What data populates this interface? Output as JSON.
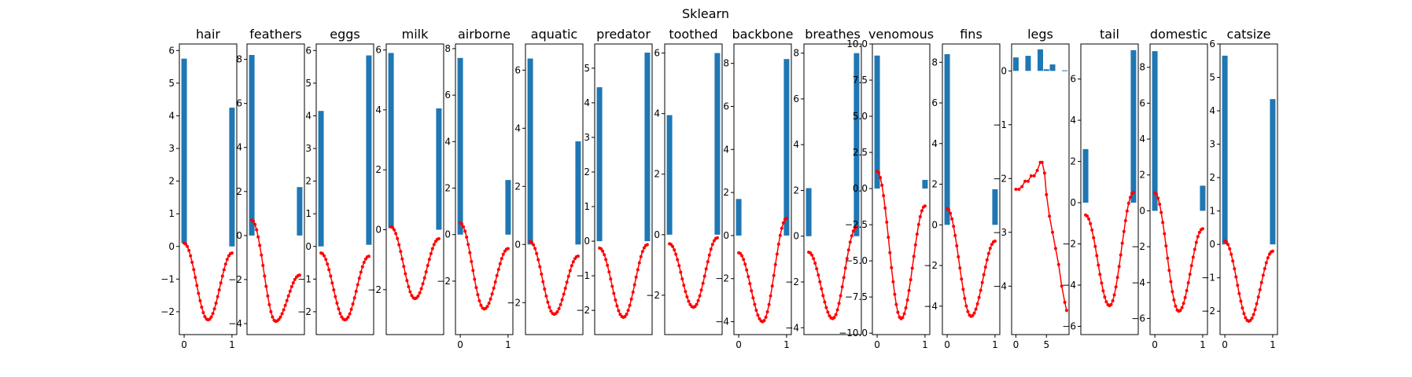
{
  "figure": {
    "suptitle": "Sklearn"
  },
  "colors": {
    "bar": "#1f77b4",
    "curve": "#ff0000",
    "axis": "#000000",
    "background": "#ffffff"
  },
  "chart_data": [
    {
      "type": "bar+line",
      "title": "hair",
      "xlim": [
        -0.1,
        1.1
      ],
      "ylim": [
        -2.7,
        6.2
      ],
      "yticks": [
        6,
        5,
        4,
        3,
        2,
        1,
        0,
        -1,
        -2
      ],
      "ytick_labels": [
        "6",
        "5",
        "4",
        "3",
        "2",
        "1",
        "0",
        "−1",
        "−2"
      ],
      "xticks": [
        0,
        1
      ],
      "xtick_labels": [
        "0",
        "1"
      ],
      "bars": [
        {
          "x": 0,
          "y0": 0.1,
          "y1": 5.75
        },
        {
          "x": 1,
          "y0": 0.0,
          "y1": 4.25
        }
      ],
      "curve": {
        "start": 0.1,
        "min": -2.25,
        "end": -0.2
      }
    },
    {
      "type": "bar+line",
      "title": "feathers",
      "xlim": [
        -0.1,
        1.1
      ],
      "ylim": [
        -4.5,
        8.7
      ],
      "yticks": [
        8,
        6,
        4,
        2,
        0,
        -2,
        -4
      ],
      "ytick_labels": [
        "8",
        "6",
        "4",
        "2",
        "0",
        "−2",
        "−4"
      ],
      "xticks": [],
      "xtick_labels": [],
      "bars": [
        {
          "x": 0,
          "y0": 0.0,
          "y1": 8.2
        },
        {
          "x": 1,
          "y0": 0.0,
          "y1": 2.2
        }
      ],
      "curve": {
        "start": 0.7,
        "min": -3.9,
        "end": -1.8
      }
    },
    {
      "type": "bar+line",
      "title": "eggs",
      "xlim": [
        -0.1,
        1.1
      ],
      "ylim": [
        -2.7,
        6.2
      ],
      "yticks": [
        6,
        5,
        4,
        3,
        2,
        1,
        0,
        -1,
        -2
      ],
      "ytick_labels": [
        "6",
        "5",
        "4",
        "3",
        "2",
        "1",
        "0",
        "−1",
        "−2"
      ],
      "xticks": [],
      "xtick_labels": [],
      "bars": [
        {
          "x": 0,
          "y0": 0.0,
          "y1": 4.15
        },
        {
          "x": 1,
          "y0": 0.05,
          "y1": 5.85
        }
      ],
      "curve": {
        "start": -0.2,
        "min": -2.25,
        "end": -0.3
      }
    },
    {
      "type": "bar+line",
      "title": "milk",
      "xlim": [
        -0.1,
        1.1
      ],
      "ylim": [
        -3.5,
        6.2
      ],
      "yticks": [
        6,
        4,
        2,
        0,
        -2
      ],
      "ytick_labels": [
        "6",
        "4",
        "2",
        "0",
        "−2"
      ],
      "xticks": [],
      "xtick_labels": [],
      "bars": [
        {
          "x": 0,
          "y0": 0.05,
          "y1": 5.9
        },
        {
          "x": 1,
          "y0": 0.0,
          "y1": 4.05
        }
      ],
      "curve": {
        "start": 0.1,
        "min": -2.3,
        "end": -0.3
      }
    },
    {
      "type": "bar+line",
      "title": "airborne",
      "xlim": [
        -0.1,
        1.1
      ],
      "ylim": [
        -4.3,
        8.2
      ],
      "yticks": [
        8,
        6,
        4,
        2,
        0,
        -2
      ],
      "ytick_labels": [
        "8",
        "6",
        "4",
        "2",
        "0",
        "−2"
      ],
      "xticks": [
        0,
        1
      ],
      "xtick_labels": [
        "0",
        "1"
      ],
      "bars": [
        {
          "x": 0,
          "y0": 0.0,
          "y1": 7.6
        },
        {
          "x": 1,
          "y0": 0.0,
          "y1": 2.35
        }
      ],
      "curve": {
        "start": 0.5,
        "min": -3.2,
        "end": -0.6
      }
    },
    {
      "type": "bar+line",
      "title": "aquatic",
      "xlim": [
        -0.1,
        1.1
      ],
      "ylim": [
        -3.1,
        6.9
      ],
      "yticks": [
        6,
        4,
        2,
        0,
        -2
      ],
      "ytick_labels": [
        "6",
        "4",
        "2",
        "0",
        "−2"
      ],
      "xticks": [],
      "xtick_labels": [],
      "bars": [
        {
          "x": 0,
          "y0": 0.0,
          "y1": 6.4
        },
        {
          "x": 1,
          "y0": 0.0,
          "y1": 3.55
        }
      ],
      "curve": {
        "start": 0.1,
        "min": -2.4,
        "end": -0.4
      }
    },
    {
      "type": "bar+line",
      "title": "predator",
      "xlim": [
        -0.1,
        1.1
      ],
      "ylim": [
        -2.7,
        5.7
      ],
      "yticks": [
        5,
        4,
        3,
        2,
        1,
        0,
        -1,
        -2
      ],
      "ytick_labels": [
        "5",
        "4",
        "3",
        "2",
        "1",
        "0",
        "−1",
        "−2"
      ],
      "xticks": [],
      "xtick_labels": [],
      "bars": [
        {
          "x": 0,
          "y0": 0.0,
          "y1": 4.45
        },
        {
          "x": 1,
          "y0": 0.0,
          "y1": 5.45
        }
      ],
      "curve": {
        "start": -0.2,
        "min": -2.2,
        "end": -0.1
      }
    },
    {
      "type": "bar+line",
      "title": "toothed",
      "xlim": [
        -0.1,
        1.1
      ],
      "ylim": [
        -3.3,
        6.3
      ],
      "yticks": [
        6,
        4,
        2,
        0,
        -2
      ],
      "ytick_labels": [
        "6",
        "4",
        "2",
        "0",
        "−2"
      ],
      "xticks": [],
      "xtick_labels": [],
      "bars": [
        {
          "x": 0,
          "y0": 0.0,
          "y1": 3.95
        },
        {
          "x": 1,
          "y0": 0.0,
          "y1": 6.0
        }
      ],
      "curve": {
        "start": -0.3,
        "min": -2.4,
        "end": -0.1
      }
    },
    {
      "type": "bar+line",
      "title": "backbone",
      "xlim": [
        -0.1,
        1.1
      ],
      "ylim": [
        -4.6,
        8.9
      ],
      "yticks": [
        8,
        6,
        4,
        2,
        0,
        -2,
        -4
      ],
      "ytick_labels": [
        "8",
        "6",
        "4",
        "2",
        "0",
        "−2",
        "−4"
      ],
      "xticks": [
        0,
        1
      ],
      "xtick_labels": [
        "0",
        "1"
      ],
      "bars": [
        {
          "x": 0,
          "y0": 0.0,
          "y1": 1.7
        },
        {
          "x": 1,
          "y0": 0.0,
          "y1": 8.2
        }
      ],
      "curve": {
        "start": -0.8,
        "min": -4.0,
        "end": 0.8
      }
    },
    {
      "type": "bar+line",
      "title": "breathes",
      "xlim": [
        -0.1,
        1.1
      ],
      "ylim": [
        -4.3,
        8.4
      ],
      "yticks": [
        8,
        6,
        4,
        2,
        0,
        -2,
        -4
      ],
      "ytick_labels": [
        "8",
        "6",
        "4",
        "2",
        "0",
        "−2",
        "−4"
      ],
      "xticks": [],
      "xtick_labels": [],
      "bars": [
        {
          "x": 0,
          "y0": 0.0,
          "y1": 2.1
        },
        {
          "x": 1,
          "y0": 0.0,
          "y1": 8.0
        }
      ],
      "curve": {
        "start": -0.7,
        "min": -3.6,
        "end": 0.4
      }
    },
    {
      "type": "bar+line",
      "title": "venomous",
      "xlim": [
        -0.1,
        1.1
      ],
      "ylim": [
        -10.1,
        10.0
      ],
      "yticks": [
        10.0,
        7.5,
        5.0,
        2.5,
        0.0,
        -2.5,
        -5.0,
        -7.5,
        -10.0
      ],
      "ytick_labels": [
        "10.0",
        "7.5",
        "5.0",
        "2.5",
        "0.0",
        "−2.5",
        "−5.0",
        "−7.5",
        "−10.0"
      ],
      "xticks": [
        0,
        1
      ],
      "xtick_labels": [
        "0",
        "1"
      ],
      "bars": [
        {
          "x": 0,
          "y0": 0.0,
          "y1": 9.2
        },
        {
          "x": 1,
          "y0": 0.0,
          "y1": 0.6
        }
      ],
      "curve": {
        "start": 1.2,
        "min": -9.0,
        "end": -1.2
      }
    },
    {
      "type": "bar+line",
      "title": "fins",
      "xlim": [
        -0.1,
        1.1
      ],
      "ylim": [
        -5.4,
        8.9
      ],
      "yticks": [
        8,
        6,
        4,
        2,
        0,
        -2,
        -4
      ],
      "ytick_labels": [
        "8",
        "6",
        "4",
        "2",
        "0",
        "−2",
        "−4"
      ],
      "xticks": [
        0,
        1
      ],
      "xtick_labels": [
        "0",
        "1"
      ],
      "bars": [
        {
          "x": 0,
          "y0": 0.0,
          "y1": 8.4
        },
        {
          "x": 1,
          "y0": 0.0,
          "y1": 1.75
        }
      ],
      "curve": {
        "start": 0.8,
        "min": -4.5,
        "end": -0.8
      }
    },
    {
      "type": "bar+line",
      "title": "legs",
      "xlim": [
        -0.7,
        8.7
      ],
      "ylim": [
        -4.9,
        0.5
      ],
      "yticks": [
        0,
        -1,
        -2,
        -3,
        -4
      ],
      "ytick_labels": [
        "0",
        "−1",
        "−2",
        "−3",
        "−4"
      ],
      "xticks": [
        0,
        5
      ],
      "xtick_labels": [
        "0",
        "5"
      ],
      "bars": [
        {
          "x": 0,
          "y0": 0.0,
          "y1": 0.25
        },
        {
          "x": 2,
          "y0": 0.0,
          "y1": 0.28
        },
        {
          "x": 4,
          "y0": 0.0,
          "y1": 0.4
        },
        {
          "x": 5,
          "y0": 0.0,
          "y1": 0.03
        },
        {
          "x": 6,
          "y0": 0.0,
          "y1": 0.12
        },
        {
          "x": 8,
          "y0": 0.0,
          "y1": 0.01
        }
      ],
      "curve": {
        "points": [
          [
            0,
            -2.2
          ],
          [
            0.5,
            -2.2
          ],
          [
            1,
            -2.15
          ],
          [
            1.5,
            -2.05
          ],
          [
            2,
            -2.05
          ],
          [
            2.5,
            -1.95
          ],
          [
            3,
            -1.95
          ],
          [
            3.5,
            -1.85
          ],
          [
            4,
            -1.7
          ],
          [
            4.3,
            -1.7
          ],
          [
            4.7,
            -1.9
          ],
          [
            5,
            -2.3
          ],
          [
            5.5,
            -2.7
          ],
          [
            6,
            -3.0
          ],
          [
            6.5,
            -3.3
          ],
          [
            7,
            -3.6
          ],
          [
            7.5,
            -4.0
          ],
          [
            8,
            -4.3
          ],
          [
            8.3,
            -4.45
          ]
        ]
      }
    },
    {
      "type": "bar+line",
      "title": "tail",
      "xlim": [
        -0.1,
        1.1
      ],
      "ylim": [
        -6.4,
        7.7
      ],
      "yticks": [
        6,
        4,
        2,
        0,
        -2,
        -4,
        -6
      ],
      "ytick_labels": [
        "6",
        "4",
        "2",
        "0",
        "−2",
        "−4",
        "−6"
      ],
      "xticks": [],
      "xtick_labels": [],
      "bars": [
        {
          "x": 0,
          "y0": 0.0,
          "y1": 2.6
        },
        {
          "x": 1,
          "y0": 0.0,
          "y1": 7.4
        }
      ],
      "curve": {
        "start": -0.6,
        "min": -5.0,
        "end": 0.5
      }
    },
    {
      "type": "bar+line",
      "title": "domestic",
      "xlim": [
        -0.1,
        1.1
      ],
      "ylim": [
        -6.9,
        9.3
      ],
      "yticks": [
        8,
        6,
        4,
        2,
        0,
        -2,
        -4,
        -6
      ],
      "ytick_labels": [
        "8",
        "6",
        "4",
        "2",
        "0",
        "−2",
        "−4",
        "−6"
      ],
      "xticks": [
        0,
        1
      ],
      "xtick_labels": [
        "0",
        "1"
      ],
      "bars": [
        {
          "x": 0,
          "y0": 0.0,
          "y1": 8.9
        },
        {
          "x": 1,
          "y0": 0.0,
          "y1": 1.4
        }
      ],
      "curve": {
        "start": 1.0,
        "min": -5.6,
        "end": -1.0
      }
    },
    {
      "type": "bar+line",
      "title": "catsize",
      "xlim": [
        -0.1,
        1.1
      ],
      "ylim": [
        -2.7,
        6.0
      ],
      "yticks": [
        6,
        5,
        4,
        3,
        2,
        1,
        0,
        -1,
        -2
      ],
      "ytick_labels": [
        "6",
        "5",
        "4",
        "3",
        "2",
        "1",
        "0",
        "−1",
        "−2"
      ],
      "xticks": [
        0,
        1
      ],
      "xtick_labels": [
        "0",
        "1"
      ],
      "bars": [
        {
          "x": 0,
          "y0": 0.0,
          "y1": 5.65
        },
        {
          "x": 1,
          "y0": 0.0,
          "y1": 4.35
        }
      ],
      "curve": {
        "start": 0.1,
        "min": -2.3,
        "end": -0.2
      }
    }
  ]
}
